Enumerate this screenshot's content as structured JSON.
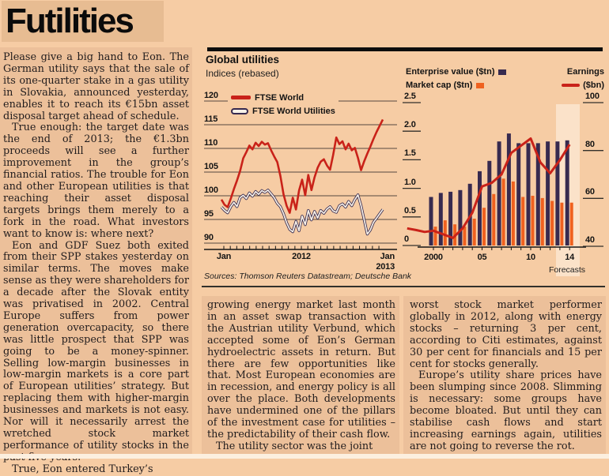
{
  "page": {
    "title": "Futilities"
  },
  "article": {
    "columns": [
      {
        "paragraphs": [
          "Please give a big hand to Eon. The German utility says that the sale of its one-quarter stake in a gas utility in Slovakia, announced yesterday, enables it to reach its €15bn asset disposal target ahead of schedule.",
          "True enough: the target date was the end of 2013; the €1.3bn proceeds will see a further improvement in the group’s financial ratios. The trouble for Eon and other European utilities is that reaching their asset disposal targets brings them merely to a fork in the road. What investors want to know is: where next?",
          "Eon and GDF Suez both exited from their SPP stakes yesterday on similar terms. The moves make sense as they were shareholders for a decade after the Slovak entity was privatised in 2002. Central Europe suffers from power generation overcapacity, so there was little prospect that SPP was going to be a money-spinner. Selling low-margin businesses in low-margin markets is a core part of European utilities’ strategy. But replacing them with higher-margin businesses and markets is not easy. Nor will it necessarily arrest the wretched stock market performance of utility stocks in the past five years.",
          "True, Eon entered Turkey’s"
        ]
      },
      {
        "paragraphs": [
          "growing energy market last month in an asset swap transaction with the Austrian utility Verbund, which accepted some of Eon’s German hydroelectric assets in return. But there are few opportunities like that. Most European economies are in recession, and energy policy is all over the place. Both developments have undermined one of the pillars of the investment case for utilities – the predictability of their cash flow.",
          "The utility sector was the joint"
        ]
      },
      {
        "paragraphs": [
          "worst stock market performer globally in 2012, along with energy stocks – returning 3 per cent, according to Citi estimates, against 30 per cent for financials and 15 per cent for stocks generally.",
          "Europe’s utility share prices have been slumping since 2008. Slimming is necessary: some groups have become bloated. But until they can stabilise cash flows and start increasing earnings again, utilities are not going to reverse the rot."
        ]
      }
    ]
  },
  "panel": {
    "title": "Global utilities",
    "subtitle": "Indices (rebased)",
    "sources": "Sources: Thomson Reuters Datastream; Deutsche Bank",
    "legend_left": {
      "world": "FTSE World",
      "utilities": "FTSE World Utilities"
    },
    "legend_right": {
      "enterprise_value": "Enterprise value ($tn)",
      "market_cap": "Market cap ($tn)",
      "earnings": "Earnings",
      "earnings_unit": "($bn)"
    },
    "forecasts_label": "Forecasts"
  },
  "colors": {
    "page_bg": "#f6cca4",
    "box_bg": "#ecc09a",
    "title_box_bg": "#e7bc92",
    "accent_red": "#c92219",
    "navy": "#372a4f",
    "orange": "#ef611f",
    "forecast_band": "#fbe2c9"
  },
  "chart_data": [
    {
      "type": "line",
      "title": "Global utilities",
      "subtitle": "Indices (rebased)",
      "ylim": [
        90,
        120
      ],
      "yticks": [
        120,
        115,
        110,
        105,
        100,
        95,
        90
      ],
      "x_axis_labels": [
        "Jan",
        "2012",
        "Jan",
        "2013"
      ],
      "x_range_months": [
        "Jan 2011",
        "Jan 2013"
      ],
      "grid": true,
      "legend_position": "top-left inside",
      "series": [
        {
          "name": "FTSE World",
          "color": "#c92219",
          "values": [
            99.2,
            98.1,
            97.6,
            99.4,
            101.4,
            103.2,
            105.2,
            107.9,
            109.2,
            110.6,
            109.8,
            111.2,
            110.5,
            111.4,
            110.8,
            111.1,
            109.6,
            108.3,
            107.1,
            104.2,
            100.3,
            97.9,
            96.4,
            99.6,
            97.1,
            101.1,
            103.4,
            100.1,
            104.4,
            101.2,
            103.9,
            105.9,
            107.2,
            107.7,
            106.4,
            105.5,
            108.6,
            112.3,
            110.9,
            111.5,
            109.8,
            111.0,
            109.6,
            110.1,
            108.0,
            105.4,
            107.3,
            108.9,
            110.4,
            112.0,
            113.5,
            114.8,
            116.1
          ]
        },
        {
          "name": "FTSE World Utilities",
          "color": "#372a4f",
          "fill": "#f7f1e8",
          "values": [
            97.6,
            96.9,
            96.4,
            97.7,
            98.6,
            97.7,
            99.6,
            100.1,
            99.4,
            100.6,
            99.9,
            100.9,
            100.3,
            101.1,
            100.7,
            101.2,
            100.4,
            99.6,
            98.4,
            97.7,
            96.2,
            94.3,
            92.9,
            92.4,
            94.6,
            92.6,
            95.7,
            93.9,
            96.9,
            94.9,
            96.7,
            95.3,
            96.9,
            96.3,
            97.2,
            97.7,
            96.8,
            96.5,
            97.9,
            98.3,
            97.6,
            98.8,
            97.9,
            99.2,
            100.2,
            97.9,
            94.9,
            91.9,
            92.8,
            94.4,
            95.3,
            96.2,
            97.1
          ]
        }
      ],
      "sources": "Sources: Thomson Reuters Datastream; Deutsche Bank"
    },
    {
      "type": "bar",
      "categories": [
        2000,
        2001,
        2002,
        2003,
        2004,
        2005,
        2006,
        2007,
        2008,
        2009,
        2010,
        2011,
        2012,
        2013,
        2014
      ],
      "ylim_left": [
        0,
        2.5
      ],
      "yticks_left": {
        "labels": [
          "2.5",
          "2.0",
          "1.5",
          "1.0",
          "0.5",
          "0"
        ],
        "values": [
          2.5,
          2.0,
          1.5,
          1.0,
          0.5,
          0
        ]
      },
      "ylim_right": [
        40,
        100
      ],
      "yticks_right": {
        "labels": [
          "100",
          "80",
          "60",
          "40"
        ],
        "values": [
          100,
          80,
          60,
          40
        ]
      },
      "xtick_labels": [
        {
          "label": "2000",
          "year": 2000
        },
        {
          "label": "05",
          "year": 2005
        },
        {
          "label": "10",
          "year": 2010
        },
        {
          "label": "14",
          "year": 2014
        }
      ],
      "grid": false,
      "forecast_band": {
        "years": [
          2013,
          2014
        ],
        "label": "Forecasts",
        "color": "#fbe2c9"
      },
      "series": [
        {
          "name": "Enterprise value ($tn)",
          "type": "bar",
          "axis": "left",
          "color": "#372a4f",
          "values": [
            0.85,
            0.92,
            0.94,
            0.97,
            1.08,
            1.3,
            1.48,
            1.82,
            1.96,
            1.79,
            1.79,
            1.79,
            1.82,
            1.82,
            1.84
          ]
        },
        {
          "name": "Market cap ($tn)",
          "type": "bar",
          "axis": "left",
          "color": "#ef611f",
          "values": [
            0.33,
            0.44,
            0.37,
            0.33,
            0.47,
            0.66,
            0.9,
            1.17,
            1.12,
            0.85,
            0.87,
            0.83,
            0.78,
            0.75,
            0.75
          ]
        },
        {
          "name": "Earnings ($bn)",
          "type": "line",
          "axis": "right",
          "color": "#c92219",
          "x": [
            1997.3,
            1998.2,
            1999.1,
            2000,
            2001,
            2002,
            2003,
            2004,
            2005,
            2006,
            2007,
            2008,
            2009,
            2010,
            2011,
            2012,
            2013,
            2014
          ],
          "values": [
            47.5,
            46.8,
            46.0,
            46.5,
            45.0,
            43.5,
            47.5,
            54.0,
            65.0,
            66.5,
            70.0,
            79.0,
            82.0,
            85.0,
            75.0,
            70.5,
            76.0,
            82.5
          ]
        }
      ]
    }
  ]
}
